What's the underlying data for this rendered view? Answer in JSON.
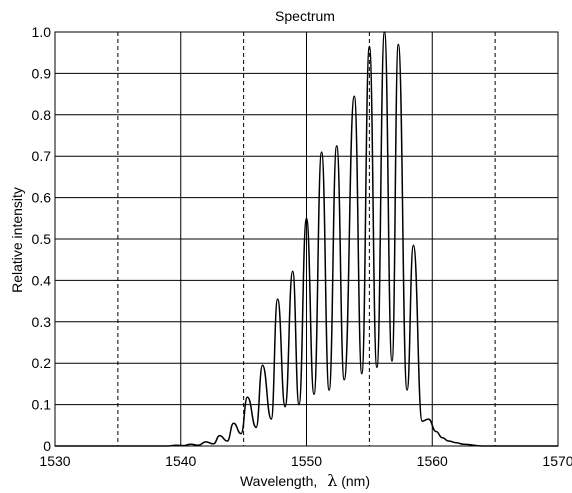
{
  "chart_data": {
    "type": "line",
    "title": "Spectrum",
    "xlabel": "Wavelength,",
    "xlabel_symbol": "λ",
    "xlabel_unit": "(nm)",
    "ylabel": "Relative intensity",
    "xlim": [
      1530,
      1570
    ],
    "ylim": [
      0,
      1.0
    ],
    "xticks": [
      1530,
      1540,
      1550,
      1560,
      1570
    ],
    "yticks": [
      0,
      0.1,
      0.2,
      0.3,
      0.4,
      0.5,
      0.6,
      0.7,
      0.8,
      0.9,
      1.0
    ],
    "ytick_labels": [
      "0",
      "0.1",
      "0.2",
      "0.3",
      "0.4",
      "0.5",
      "0.6",
      "0.7",
      "0.8",
      "0.9",
      "1.0"
    ],
    "grid": true,
    "dashed_gridlines_x": [
      1535,
      1545,
      1555,
      1565
    ],
    "line_color": "#000000",
    "series": [
      {
        "peaks": [
          {
            "x": 1539.6,
            "y": 0.002
          },
          {
            "x": 1540.8,
            "y": 0.004
          },
          {
            "x": 1542.0,
            "y": 0.01
          },
          {
            "x": 1543.1,
            "y": 0.025
          },
          {
            "x": 1544.2,
            "y": 0.055
          },
          {
            "x": 1545.3,
            "y": 0.118
          },
          {
            "x": 1546.5,
            "y": 0.195
          },
          {
            "x": 1547.7,
            "y": 0.355
          },
          {
            "x": 1548.9,
            "y": 0.422
          },
          {
            "x": 1550.0,
            "y": 0.55
          },
          {
            "x": 1551.2,
            "y": 0.71
          },
          {
            "x": 1552.4,
            "y": 0.725
          },
          {
            "x": 1553.8,
            "y": 0.845
          },
          {
            "x": 1555.0,
            "y": 0.965
          },
          {
            "x": 1556.2,
            "y": 1.0
          },
          {
            "x": 1557.3,
            "y": 0.97
          },
          {
            "x": 1558.5,
            "y": 0.485
          }
        ],
        "valleys": [
          {
            "x": 1539.0,
            "y": 0.0
          },
          {
            "x": 1540.2,
            "y": 0.001
          },
          {
            "x": 1541.4,
            "y": 0.002
          },
          {
            "x": 1542.6,
            "y": 0.005
          },
          {
            "x": 1543.7,
            "y": 0.012
          },
          {
            "x": 1544.8,
            "y": 0.03
          },
          {
            "x": 1546.0,
            "y": 0.045
          },
          {
            "x": 1547.2,
            "y": 0.065
          },
          {
            "x": 1548.3,
            "y": 0.095
          },
          {
            "x": 1549.4,
            "y": 0.1
          },
          {
            "x": 1550.6,
            "y": 0.125
          },
          {
            "x": 1551.8,
            "y": 0.135
          },
          {
            "x": 1553.0,
            "y": 0.16
          },
          {
            "x": 1554.4,
            "y": 0.175
          },
          {
            "x": 1555.6,
            "y": 0.19
          },
          {
            "x": 1556.8,
            "y": 0.205
          },
          {
            "x": 1558.0,
            "y": 0.135
          },
          {
            "x": 1559.2,
            "y": 0.06
          },
          {
            "x": 1560.3,
            "y": 0.035
          },
          {
            "x": 1561.3,
            "y": 0.012
          },
          {
            "x": 1562.5,
            "y": 0.004
          },
          {
            "x": 1564.0,
            "y": 0.0
          }
        ],
        "minor_bumps": [
          {
            "x": 1559.7,
            "y": 0.065
          },
          {
            "x": 1560.8,
            "y": 0.02
          },
          {
            "x": 1561.9,
            "y": 0.008
          }
        ]
      }
    ]
  }
}
